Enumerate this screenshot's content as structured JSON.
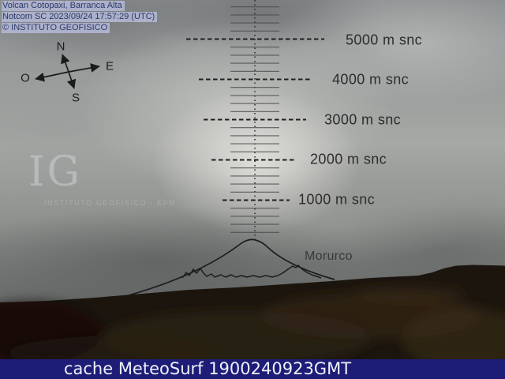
{
  "header": {
    "line1": "Volcan Cotopaxi, Barranca Alta",
    "line2": "Notcom SC 2023/09/24 17:57:29 (UTC)",
    "line3": "© INSTITUTO GEOFISICO"
  },
  "compass": {
    "north": "N",
    "east": "E",
    "west": "O",
    "south": "S"
  },
  "scale": {
    "unit": "m snc",
    "labels": [
      {
        "text": "5000 m snc",
        "value": 5000
      },
      {
        "text": "4000 m snc",
        "value": 4000
      },
      {
        "text": "3000 m snc",
        "value": 3000
      },
      {
        "text": "2000 m snc",
        "value": 2000
      },
      {
        "text": "1000 m snc",
        "value": 1000
      }
    ]
  },
  "annotations": {
    "peak_label": "Morurco"
  },
  "watermark": {
    "initials": "IG",
    "subtext": "INSTITUTO GEOFISICO - EPN"
  },
  "footer": {
    "caption": "cache MeteoSurf 1900240923GMT"
  },
  "colors": {
    "footer_bg": "#1d1d78",
    "footer_text": "#eef0f8",
    "header_bg": "rgba(177,182,210,0.9)",
    "header_text": "#2c3969",
    "overlay_ink": "#1f1f23",
    "sky_bright": "#d6d6d0",
    "terrain_dark": "#1b150e"
  }
}
